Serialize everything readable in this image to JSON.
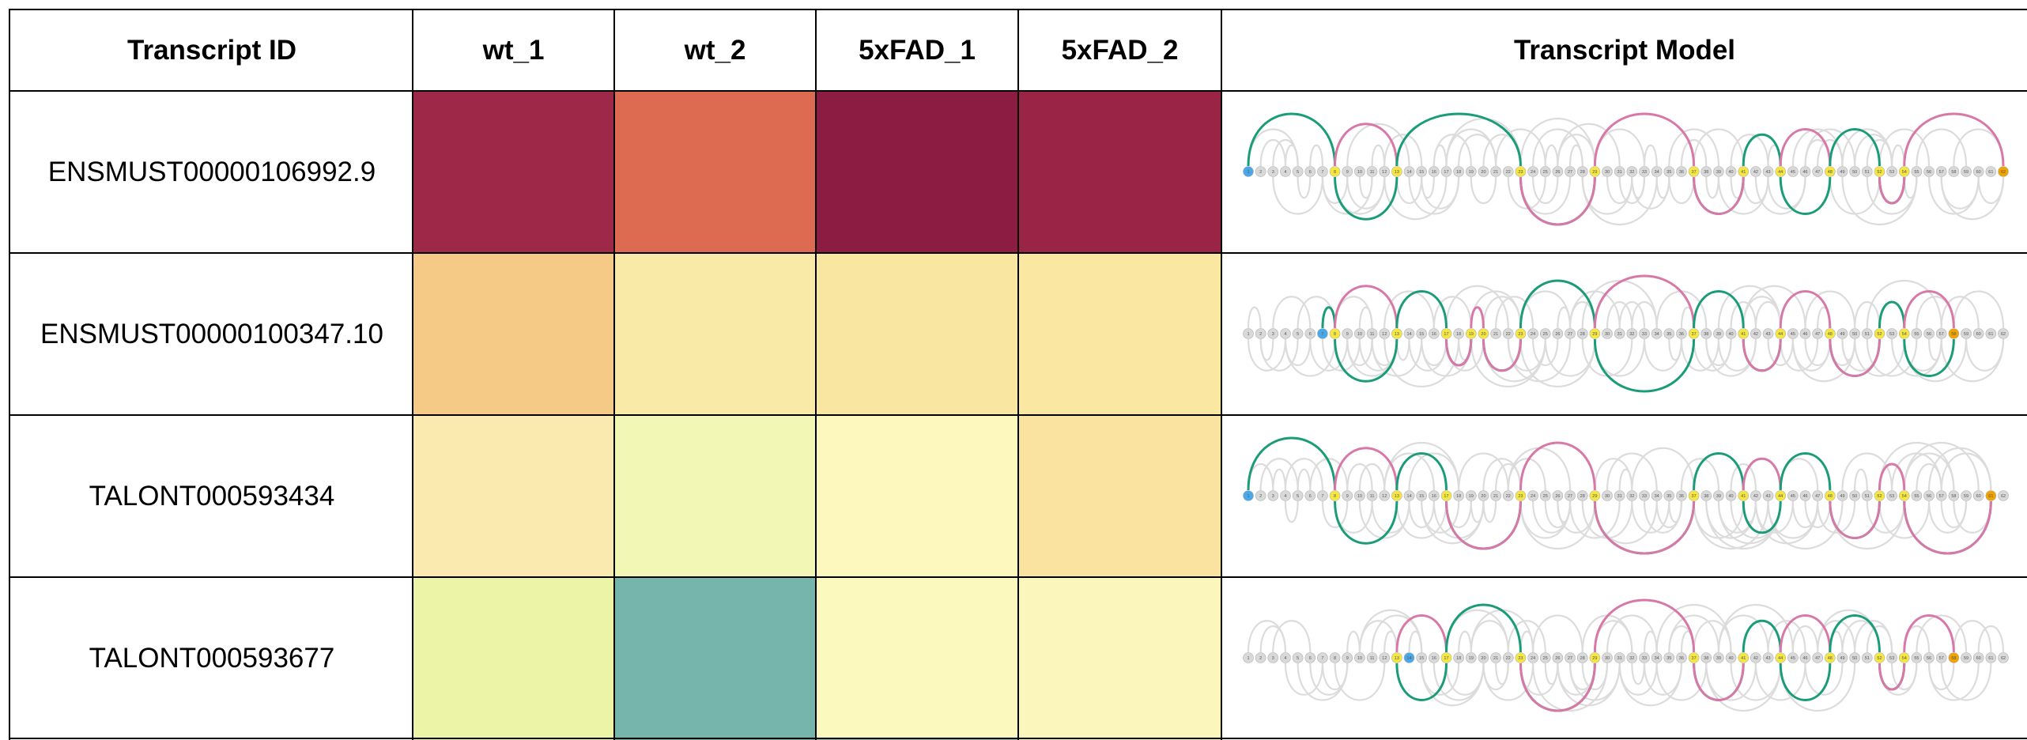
{
  "chart_data": {
    "type": "heatmap",
    "columns": [
      "Transcript ID",
      "wt_1",
      "wt_2",
      "5xFAD_1",
      "5xFAD_2",
      "Transcript Model"
    ],
    "samples": [
      "wt_1",
      "wt_2",
      "5xFAD_1",
      "5xFAD_2"
    ],
    "rows": [
      {
        "id": "ENSMUST00000106992.9",
        "cells": [
          "#9e2848",
          "#dd6b52",
          "#8d1c42",
          "#9a2446"
        ],
        "model": {
          "start": 1,
          "end": 62,
          "start_color": "#4aa8e8",
          "end_color": "#f0a400",
          "highlight": [
            8,
            13,
            23,
            29,
            37,
            41,
            44,
            48,
            52,
            54,
            62
          ]
        }
      },
      {
        "id": "ENSMUST00000100347.10",
        "cells": [
          "#f5c986",
          "#faeaa8",
          "#f9e6a0",
          "#fae7a2"
        ],
        "model": {
          "start": 7,
          "end": 58,
          "start_color": "#4aa8e8",
          "end_color": "#f0a400",
          "highlight": [
            8,
            13,
            17,
            19,
            20,
            23,
            29,
            37,
            41,
            44,
            48,
            52,
            54,
            58
          ]
        }
      },
      {
        "id": "TALONT000593434",
        "cells": [
          "#fbeab0",
          "#f3f7b6",
          "#fcf8be",
          "#fae3a1"
        ],
        "model": {
          "start": 1,
          "end": 61,
          "start_color": "#4aa8e8",
          "end_color": "#f0a400",
          "highlight": [
            8,
            13,
            17,
            23,
            29,
            37,
            41,
            44,
            48,
            52,
            54,
            61
          ]
        }
      },
      {
        "id": "TALONT000593677",
        "cells": [
          "#ecf4a8",
          "#76b5ab",
          "#fbf9bd",
          "#fbf7bc"
        ],
        "model": {
          "start": 14,
          "end": 58,
          "start_color": "#4aa8e8",
          "end_color": "#f0a400",
          "highlight": [
            13,
            17,
            23,
            29,
            37,
            41,
            44,
            48,
            52,
            54,
            58
          ]
        }
      }
    ],
    "partial_next_row": [
      "#ecf4a8",
      "#76b5ab",
      "#8ec5b8",
      "#fbf7bc"
    ],
    "colors": {
      "node_gray": "#d9d9d9",
      "node_yellow": "#f5e642",
      "arc_gray": "#dcdcdc",
      "arc_pink": "#d878a8",
      "arc_green": "#1a9c78"
    }
  }
}
